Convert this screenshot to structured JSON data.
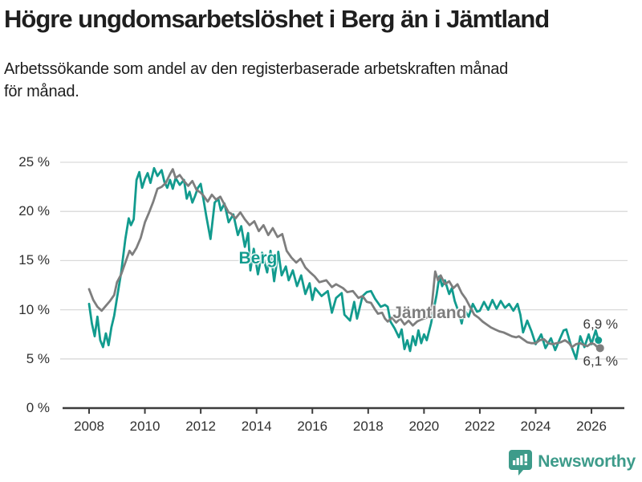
{
  "header": {
    "title": "Högre ungdomsarbetslöshet i Berg än i Jämtland",
    "subtitle": "Arbetssökande som andel av den registerbaserade arbetskraften månad för månad.",
    "subtitle_lines": [
      "Arbetssökande som andel av den registerbaserade arbetskraften månad",
      "för månad."
    ]
  },
  "footer": {
    "brand": "Newsworthy",
    "brand_color": "#3d9b8a"
  },
  "chart_data": {
    "type": "line",
    "unit": "%",
    "grid": true,
    "colors": {
      "grid": "#d9d9d9",
      "axis": "#3c3c3c",
      "tick_text": "#303030"
    },
    "x_axis": {
      "range": [
        2008,
        2026.4
      ],
      "ticks": [
        {
          "value": 2008,
          "label": "2008"
        },
        {
          "value": 2010,
          "label": "2010"
        },
        {
          "value": 2012,
          "label": "2012"
        },
        {
          "value": 2014,
          "label": "2014"
        },
        {
          "value": 2016,
          "label": "2016"
        },
        {
          "value": 2018,
          "label": "2018"
        },
        {
          "value": 2020,
          "label": "2020"
        },
        {
          "value": 2022,
          "label": "2022"
        },
        {
          "value": 2024,
          "label": "2024"
        },
        {
          "value": 2026,
          "label": "2026"
        }
      ]
    },
    "y_axis": {
      "range": [
        0,
        25
      ],
      "ticks": [
        {
          "value": 25,
          "label": "25 %"
        },
        {
          "value": 20,
          "label": "20 %"
        },
        {
          "value": 15,
          "label": "15 %"
        },
        {
          "value": 10,
          "label": "10 %"
        },
        {
          "value": 5,
          "label": "5 %"
        },
        {
          "value": 0,
          "label": "0 %"
        }
      ]
    },
    "series": [
      {
        "name": "Berg",
        "color": "#129b8e",
        "end_value": 6.9,
        "end_label": "6,9 %",
        "label_anchor": {
          "x": 2014.05,
          "y": 15.2
        },
        "points": [
          [
            2008.0,
            10.6
          ],
          [
            2008.1,
            8.6
          ],
          [
            2008.2,
            7.3
          ],
          [
            2008.3,
            9.3
          ],
          [
            2008.4,
            6.9
          ],
          [
            2008.5,
            6.2
          ],
          [
            2008.6,
            7.6
          ],
          [
            2008.7,
            6.4
          ],
          [
            2008.8,
            8.2
          ],
          [
            2008.9,
            9.4
          ],
          [
            2009.0,
            11.2
          ],
          [
            2009.15,
            13.8
          ],
          [
            2009.3,
            17.2
          ],
          [
            2009.42,
            19.3
          ],
          [
            2009.5,
            18.6
          ],
          [
            2009.6,
            19.2
          ],
          [
            2009.7,
            23.2
          ],
          [
            2009.8,
            24.0
          ],
          [
            2009.9,
            22.4
          ],
          [
            2010.0,
            23.3
          ],
          [
            2010.1,
            23.9
          ],
          [
            2010.2,
            22.9
          ],
          [
            2010.33,
            24.4
          ],
          [
            2010.45,
            23.6
          ],
          [
            2010.6,
            24.2
          ],
          [
            2010.7,
            23.0
          ],
          [
            2010.8,
            22.4
          ],
          [
            2010.9,
            23.2
          ],
          [
            2011.0,
            22.3
          ],
          [
            2011.1,
            23.4
          ],
          [
            2011.25,
            22.7
          ],
          [
            2011.4,
            23.2
          ],
          [
            2011.5,
            21.3
          ],
          [
            2011.6,
            22.0
          ],
          [
            2011.7,
            20.9
          ],
          [
            2011.8,
            21.6
          ],
          [
            2011.9,
            22.4
          ],
          [
            2012.0,
            22.8
          ],
          [
            2012.1,
            21.2
          ],
          [
            2012.2,
            19.5
          ],
          [
            2012.35,
            17.2
          ],
          [
            2012.5,
            20.9
          ],
          [
            2012.63,
            21.3
          ],
          [
            2012.72,
            20.1
          ],
          [
            2012.85,
            20.8
          ],
          [
            2013.0,
            18.9
          ],
          [
            2013.17,
            19.7
          ],
          [
            2013.33,
            17.6
          ],
          [
            2013.45,
            18.5
          ],
          [
            2013.58,
            16.4
          ],
          [
            2013.7,
            17.8
          ],
          [
            2013.78,
            14.0
          ],
          [
            2013.9,
            16.2
          ],
          [
            2014.05,
            13.6
          ],
          [
            2014.2,
            15.8
          ],
          [
            2014.38,
            13.8
          ],
          [
            2014.5,
            16.0
          ],
          [
            2014.63,
            12.9
          ],
          [
            2014.78,
            15.9
          ],
          [
            2014.9,
            13.5
          ],
          [
            2015.05,
            14.4
          ],
          [
            2015.15,
            13.0
          ],
          [
            2015.3,
            14.0
          ],
          [
            2015.45,
            12.4
          ],
          [
            2015.6,
            13.5
          ],
          [
            2015.75,
            11.6
          ],
          [
            2015.9,
            12.7
          ],
          [
            2016.0,
            11.0
          ],
          [
            2016.1,
            12.2
          ],
          [
            2016.33,
            11.4
          ],
          [
            2016.55,
            11.9
          ],
          [
            2016.7,
            9.7
          ],
          [
            2016.85,
            11.2
          ],
          [
            2017.05,
            11.7
          ],
          [
            2017.15,
            9.5
          ],
          [
            2017.35,
            8.9
          ],
          [
            2017.5,
            10.8
          ],
          [
            2017.6,
            9.1
          ],
          [
            2017.8,
            11.4
          ],
          [
            2017.95,
            11.8
          ],
          [
            2018.1,
            11.9
          ],
          [
            2018.25,
            11.1
          ],
          [
            2018.45,
            10.3
          ],
          [
            2018.6,
            10.5
          ],
          [
            2018.7,
            10.3
          ],
          [
            2018.8,
            8.8
          ],
          [
            2018.95,
            8.1
          ],
          [
            2019.1,
            7.2
          ],
          [
            2019.2,
            8.0
          ],
          [
            2019.3,
            6.0
          ],
          [
            2019.4,
            6.9
          ],
          [
            2019.5,
            5.8
          ],
          [
            2019.6,
            7.3
          ],
          [
            2019.7,
            6.4
          ],
          [
            2019.8,
            7.9
          ],
          [
            2019.9,
            6.6
          ],
          [
            2020.0,
            7.5
          ],
          [
            2020.1,
            6.9
          ],
          [
            2020.25,
            8.6
          ],
          [
            2020.45,
            11.5
          ],
          [
            2020.55,
            13.4
          ],
          [
            2020.65,
            12.4
          ],
          [
            2020.75,
            13.0
          ],
          [
            2020.9,
            11.6
          ],
          [
            2021.0,
            12.2
          ],
          [
            2021.1,
            10.9
          ],
          [
            2021.25,
            9.7
          ],
          [
            2021.35,
            8.6
          ],
          [
            2021.45,
            10.0
          ],
          [
            2021.6,
            9.3
          ],
          [
            2021.75,
            10.6
          ],
          [
            2021.9,
            9.8
          ],
          [
            2022.0,
            9.9
          ],
          [
            2022.15,
            10.8
          ],
          [
            2022.3,
            10.0
          ],
          [
            2022.45,
            11.0
          ],
          [
            2022.6,
            10.1
          ],
          [
            2022.75,
            10.9
          ],
          [
            2022.9,
            10.2
          ],
          [
            2023.05,
            10.6
          ],
          [
            2023.2,
            9.9
          ],
          [
            2023.35,
            10.6
          ],
          [
            2023.45,
            9.5
          ],
          [
            2023.55,
            7.7
          ],
          [
            2023.7,
            8.9
          ],
          [
            2023.85,
            7.8
          ],
          [
            2024.0,
            6.5
          ],
          [
            2024.2,
            7.5
          ],
          [
            2024.35,
            6.1
          ],
          [
            2024.55,
            7.1
          ],
          [
            2024.7,
            5.9
          ],
          [
            2024.85,
            6.9
          ],
          [
            2025.0,
            7.9
          ],
          [
            2025.1,
            8.0
          ],
          [
            2025.25,
            6.5
          ],
          [
            2025.45,
            5.0
          ],
          [
            2025.6,
            7.3
          ],
          [
            2025.75,
            6.2
          ],
          [
            2025.9,
            7.5
          ],
          [
            2026.0,
            6.5
          ],
          [
            2026.15,
            7.9
          ],
          [
            2026.25,
            6.9
          ]
        ]
      },
      {
        "name": "Jämtland",
        "color": "#7e7e7e",
        "end_value": 6.1,
        "end_label": "6,1 %",
        "label_anchor": {
          "x": 2020.2,
          "y": 9.6
        },
        "points": [
          [
            2008.0,
            12.1
          ],
          [
            2008.15,
            11.0
          ],
          [
            2008.3,
            10.3
          ],
          [
            2008.45,
            9.9
          ],
          [
            2008.6,
            10.4
          ],
          [
            2008.75,
            10.9
          ],
          [
            2008.9,
            11.5
          ],
          [
            2009.0,
            12.8
          ],
          [
            2009.15,
            13.6
          ],
          [
            2009.3,
            14.8
          ],
          [
            2009.45,
            16.0
          ],
          [
            2009.55,
            15.6
          ],
          [
            2009.7,
            16.3
          ],
          [
            2009.85,
            17.3
          ],
          [
            2010.0,
            18.9
          ],
          [
            2010.15,
            19.9
          ],
          [
            2010.3,
            21.0
          ],
          [
            2010.45,
            22.3
          ],
          [
            2010.6,
            22.5
          ],
          [
            2010.75,
            22.9
          ],
          [
            2010.9,
            23.8
          ],
          [
            2011.0,
            24.3
          ],
          [
            2011.1,
            23.4
          ],
          [
            2011.25,
            23.7
          ],
          [
            2011.4,
            23.1
          ],
          [
            2011.55,
            22.6
          ],
          [
            2011.7,
            23.1
          ],
          [
            2011.85,
            22.2
          ],
          [
            2012.0,
            21.9
          ],
          [
            2012.1,
            21.6
          ],
          [
            2012.25,
            21.0
          ],
          [
            2012.4,
            21.7
          ],
          [
            2012.55,
            21.2
          ],
          [
            2012.7,
            21.5
          ],
          [
            2012.85,
            20.7
          ],
          [
            2013.0,
            19.9
          ],
          [
            2013.08,
            19.8
          ],
          [
            2013.25,
            19.3
          ],
          [
            2013.42,
            19.9
          ],
          [
            2013.58,
            19.2
          ],
          [
            2013.75,
            18.6
          ],
          [
            2013.92,
            19.0
          ],
          [
            2014.08,
            18.0
          ],
          [
            2014.25,
            18.6
          ],
          [
            2014.42,
            17.6
          ],
          [
            2014.58,
            18.3
          ],
          [
            2014.75,
            17.4
          ],
          [
            2014.92,
            17.7
          ],
          [
            2015.08,
            16.0
          ],
          [
            2015.25,
            15.3
          ],
          [
            2015.42,
            14.8
          ],
          [
            2015.58,
            15.2
          ],
          [
            2015.75,
            14.3
          ],
          [
            2015.92,
            13.8
          ],
          [
            2016.08,
            13.4
          ],
          [
            2016.25,
            12.8
          ],
          [
            2016.5,
            13.0
          ],
          [
            2016.7,
            12.3
          ],
          [
            2016.85,
            12.6
          ],
          [
            2017.1,
            12.2
          ],
          [
            2017.25,
            11.8
          ],
          [
            2017.45,
            11.9
          ],
          [
            2017.65,
            11.2
          ],
          [
            2017.8,
            11.4
          ],
          [
            2017.95,
            10.8
          ],
          [
            2018.1,
            10.7
          ],
          [
            2018.25,
            10.0
          ],
          [
            2018.35,
            9.6
          ],
          [
            2018.5,
            9.7
          ],
          [
            2018.6,
            9.1
          ],
          [
            2018.7,
            8.8
          ],
          [
            2018.85,
            9.2
          ],
          [
            2019.0,
            8.7
          ],
          [
            2019.15,
            9.1
          ],
          [
            2019.3,
            8.5
          ],
          [
            2019.45,
            8.9
          ],
          [
            2019.6,
            8.4
          ],
          [
            2019.75,
            8.8
          ],
          [
            2019.9,
            9.0
          ],
          [
            2020.1,
            9.2
          ],
          [
            2020.25,
            9.6
          ],
          [
            2020.4,
            13.9
          ],
          [
            2020.5,
            13.0
          ],
          [
            2020.6,
            13.5
          ],
          [
            2020.75,
            12.6
          ],
          [
            2020.9,
            12.9
          ],
          [
            2021.05,
            12.2
          ],
          [
            2021.2,
            12.6
          ],
          [
            2021.35,
            11.7
          ],
          [
            2021.5,
            11.1
          ],
          [
            2021.65,
            10.3
          ],
          [
            2021.8,
            9.5
          ],
          [
            2021.95,
            9.2
          ],
          [
            2022.1,
            8.8
          ],
          [
            2022.25,
            8.5
          ],
          [
            2022.4,
            8.2
          ],
          [
            2022.55,
            8.0
          ],
          [
            2022.7,
            7.8
          ],
          [
            2022.85,
            7.7
          ],
          [
            2023.0,
            7.5
          ],
          [
            2023.15,
            7.3
          ],
          [
            2023.3,
            7.2
          ],
          [
            2023.4,
            7.3
          ],
          [
            2023.55,
            7.0
          ],
          [
            2023.7,
            6.7
          ],
          [
            2023.85,
            6.6
          ],
          [
            2024.0,
            6.6
          ],
          [
            2024.15,
            6.9
          ],
          [
            2024.3,
            7.0
          ],
          [
            2024.45,
            6.6
          ],
          [
            2024.6,
            6.5
          ],
          [
            2024.75,
            6.6
          ],
          [
            2024.9,
            6.7
          ],
          [
            2025.05,
            6.9
          ],
          [
            2025.2,
            6.6
          ],
          [
            2025.3,
            6.2
          ],
          [
            2025.45,
            6.5
          ],
          [
            2025.6,
            6.6
          ],
          [
            2025.75,
            6.4
          ],
          [
            2025.85,
            6.3
          ],
          [
            2026.0,
            6.6
          ],
          [
            2026.1,
            6.5
          ],
          [
            2026.25,
            6.1
          ]
        ]
      }
    ]
  }
}
